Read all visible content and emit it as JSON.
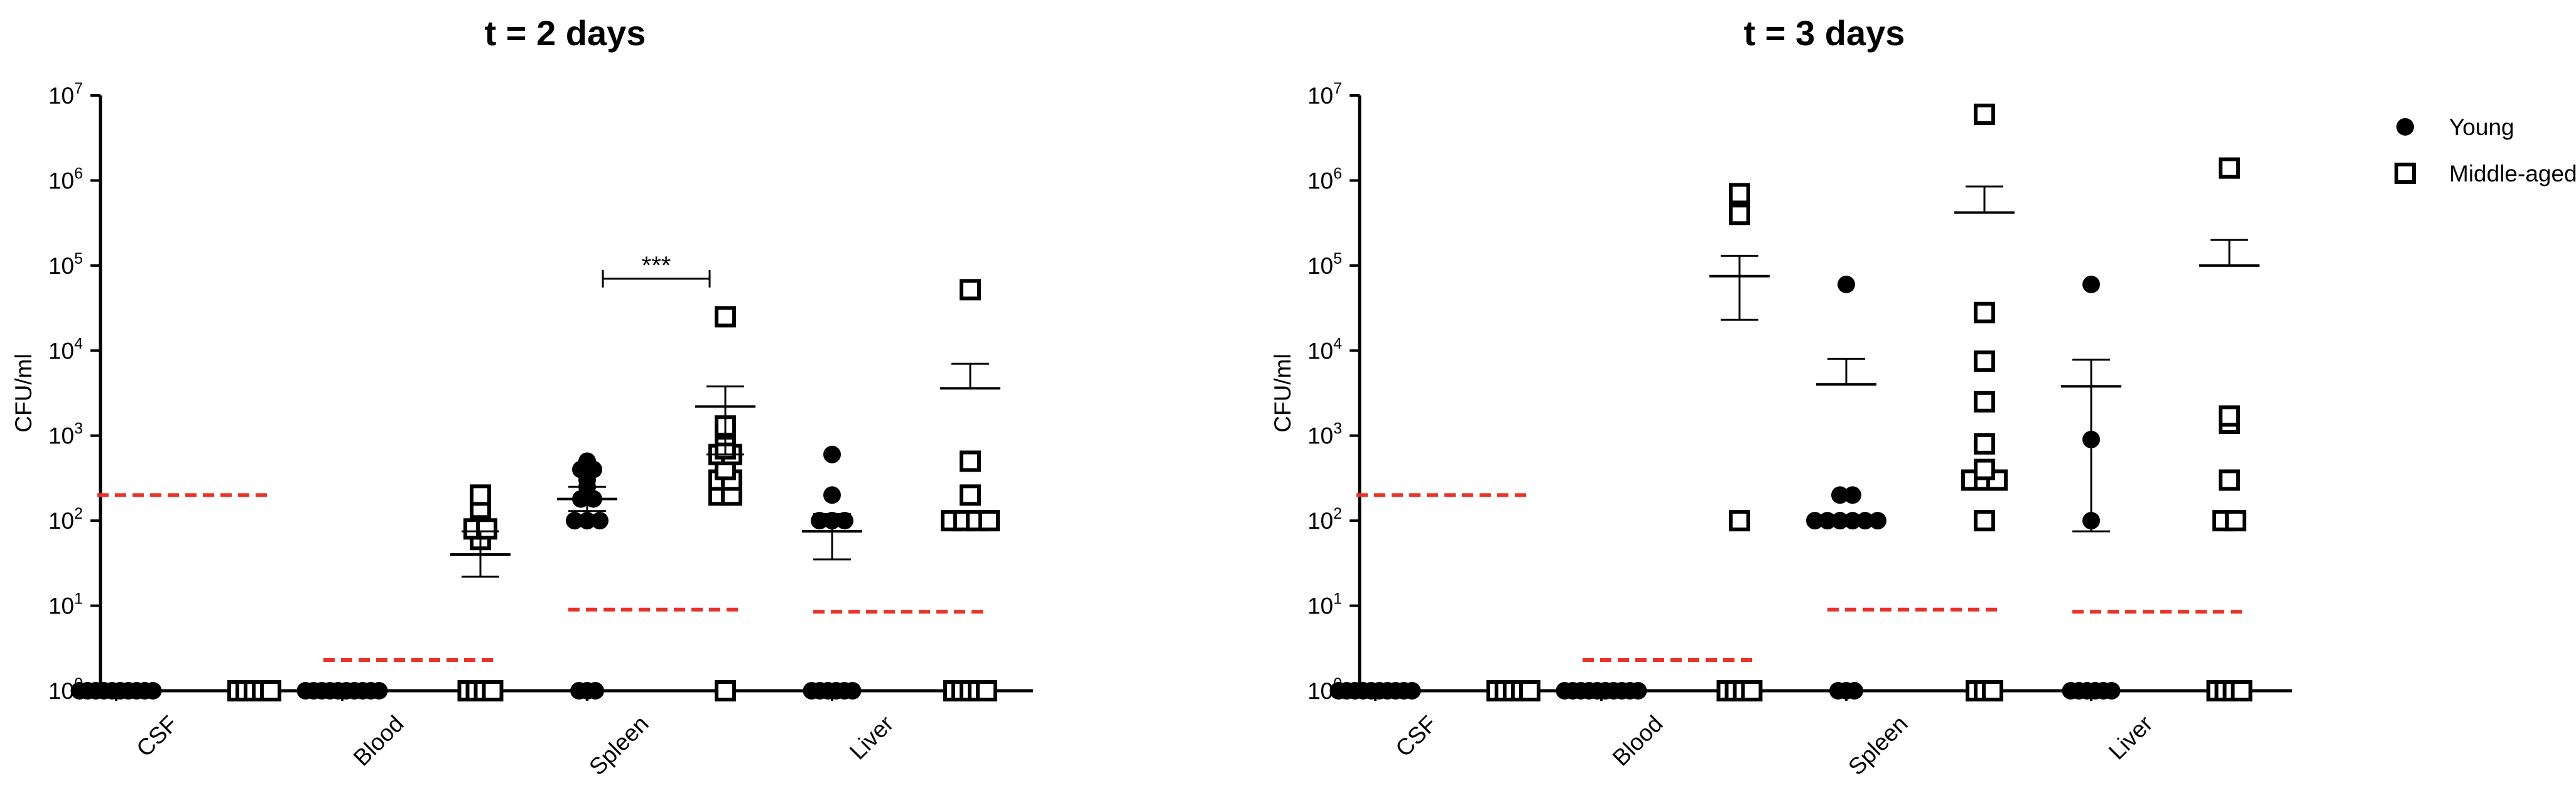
{
  "legend": {
    "placement": "top-right",
    "entries": [
      {
        "label": "Young",
        "marker": "filled-circle"
      },
      {
        "label": "Middle-aged",
        "marker": "open-square"
      }
    ]
  },
  "colors": {
    "points": "#000000",
    "detection_limit": "#e8332a"
  },
  "chart_data": [
    {
      "type": "scatter",
      "title": "t = 2 days",
      "ylabel": "CFU/ml",
      "yscale": "log",
      "ylim": [
        1,
        10000000
      ],
      "yticks": [
        {
          "base": "10",
          "exp": "0"
        },
        {
          "base": "10",
          "exp": "1"
        },
        {
          "base": "10",
          "exp": "2"
        },
        {
          "base": "10",
          "exp": "3"
        },
        {
          "base": "10",
          "exp": "4"
        },
        {
          "base": "10",
          "exp": "5"
        },
        {
          "base": "10",
          "exp": "6"
        },
        {
          "base": "10",
          "exp": "7"
        }
      ],
      "categories": [
        "CSF",
        "Blood",
        "Spleen",
        "Liver"
      ],
      "detection_limits": [
        200,
        2.3,
        9,
        8.5
      ],
      "series": [
        {
          "name": "Young",
          "marker": "filled-circle",
          "values": [
            [
              1,
              1,
              1,
              1,
              1,
              1,
              1,
              1,
              1,
              1
            ],
            [
              1,
              1,
              1,
              1,
              1,
              1,
              1,
              1,
              1,
              1
            ],
            [
              500,
              450,
              400,
              400,
              300,
              250,
              180,
              180,
              100,
              100,
              100,
              1,
              1,
              1
            ],
            [
              600,
              200,
              100,
              100,
              100,
              1,
              1,
              1,
              1,
              1,
              1
            ]
          ]
        },
        {
          "name": "Middle-aged",
          "marker": "open-square",
          "values": [
            [
              1,
              1,
              1,
              1,
              1
            ],
            [
              200,
              140,
              80,
              80,
              60,
              1,
              1,
              1,
              1
            ],
            [
              25000,
              1300,
              1200,
              1000,
              700,
              600,
              600,
              400,
              300,
              300,
              200,
              200,
              1
            ],
            [
              52000,
              500,
              200,
              100,
              100,
              100,
              100,
              1,
              1,
              1,
              1,
              1
            ]
          ]
        }
      ],
      "summary": [
        {
          "series": "Young",
          "category": "Blood",
          "mean": 0,
          "upper": 0,
          "lower": 0,
          "show": false
        },
        {
          "series": "Young",
          "category": "Spleen",
          "mean": 180,
          "upper": 250,
          "lower": 130,
          "show": true
        },
        {
          "series": "Young",
          "category": "Liver",
          "mean": 75,
          "upper": 120,
          "lower": 35,
          "show": true
        },
        {
          "series": "Middle-aged",
          "category": "Blood",
          "mean": 40,
          "upper": 75,
          "lower": 22,
          "show": true
        },
        {
          "series": "Middle-aged",
          "category": "Spleen",
          "mean": 2200,
          "upper": 3800,
          "lower": 600,
          "show": true
        },
        {
          "series": "Middle-aged",
          "category": "Liver",
          "mean": 3600,
          "upper": 7000,
          "lower": 0,
          "show": true
        }
      ],
      "annotations": [
        {
          "text": "***",
          "category": "Spleen",
          "y": 70000
        }
      ]
    },
    {
      "type": "scatter",
      "title": "t = 3 days",
      "ylabel": "CFU/ml",
      "yscale": "log",
      "ylim": [
        1,
        10000000
      ],
      "yticks": [
        {
          "base": "10",
          "exp": "0"
        },
        {
          "base": "10",
          "exp": "1"
        },
        {
          "base": "10",
          "exp": "2"
        },
        {
          "base": "10",
          "exp": "3"
        },
        {
          "base": "10",
          "exp": "4"
        },
        {
          "base": "10",
          "exp": "5"
        },
        {
          "base": "10",
          "exp": "6"
        },
        {
          "base": "10",
          "exp": "7"
        }
      ],
      "categories": [
        "CSF",
        "Blood",
        "Spleen",
        "Liver"
      ],
      "detection_limits": [
        200,
        2.3,
        9,
        8.5
      ],
      "series": [
        {
          "name": "Young",
          "marker": "filled-circle",
          "values": [
            [
              1,
              1,
              1,
              1,
              1,
              1,
              1,
              1,
              1,
              1
            ],
            [
              1,
              1,
              1,
              1,
              1,
              1,
              1,
              1,
              1,
              1
            ],
            [
              60000,
              200,
              200,
              100,
              100,
              100,
              100,
              100,
              100,
              1,
              1,
              1
            ],
            [
              60000,
              900,
              100,
              1,
              1,
              1,
              1,
              1,
              1
            ]
          ]
        },
        {
          "name": "Middle-aged",
          "marker": "open-square",
          "values": [
            [
              1,
              1,
              1,
              1,
              1
            ],
            [
              700000,
              400000,
              100,
              1,
              1,
              1,
              1
            ],
            [
              6000000,
              28000,
              7500,
              2500,
              800,
              400,
              300,
              300,
              300,
              100,
              1,
              1,
              1
            ],
            [
              1400000,
              1700,
              1400,
              300,
              100,
              100,
              1,
              1,
              1,
              1
            ]
          ]
        }
      ],
      "summary": [
        {
          "series": "Young",
          "category": "Spleen",
          "mean": 4000,
          "upper": 8000,
          "lower": 0,
          "show": true
        },
        {
          "series": "Young",
          "category": "Liver",
          "mean": 3800,
          "upper": 7800,
          "lower": 75,
          "show": true
        },
        {
          "series": "Middle-aged",
          "category": "Blood",
          "mean": 75000,
          "upper": 130000,
          "lower": 23000,
          "show": true
        },
        {
          "series": "Middle-aged",
          "category": "Spleen",
          "mean": 420000,
          "upper": 850000,
          "lower": 0,
          "show": true
        },
        {
          "series": "Middle-aged",
          "category": "Liver",
          "mean": 100000,
          "upper": 200000,
          "lower": 0,
          "show": true
        }
      ],
      "annotations": []
    }
  ]
}
